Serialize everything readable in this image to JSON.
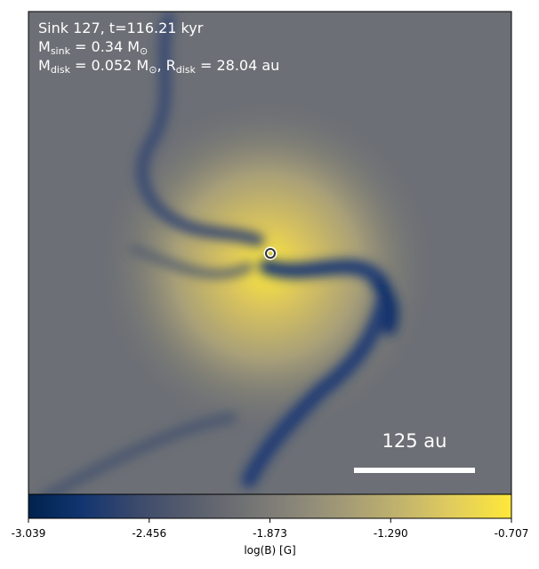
{
  "chart_data": {
    "type": "colormap-image",
    "annotation_lines": [
      [
        {
          "text": "Sink 127, t=116.21 kyr",
          "sub": false
        }
      ],
      [
        {
          "text": "M",
          "sub": false
        },
        {
          "text": "sink",
          "sub": true
        },
        {
          "text": " = 0.34 M",
          "sub": false
        },
        {
          "text": "⊙",
          "sub": true
        }
      ],
      [
        {
          "text": "M",
          "sub": false
        },
        {
          "text": "disk",
          "sub": true
        },
        {
          "text": " = 0.052 M",
          "sub": false
        },
        {
          "text": "⊙",
          "sub": true
        },
        {
          "text": ", R",
          "sub": false
        },
        {
          "text": "disk",
          "sub": true
        },
        {
          "text": " = 28.04 au",
          "sub": false
        }
      ]
    ],
    "scale_bar_label": "125 au",
    "colorbar": {
      "label": "log(B) [G]",
      "lim": [
        -3.039,
        -0.707
      ],
      "ticks": [
        -3.039,
        -2.456,
        -1.873,
        -1.29,
        -0.707
      ],
      "colormap": [
        "#00224e",
        "#123570",
        "#3b496c",
        "#575d6d",
        "#707173",
        "#8a8779",
        "#a69d75",
        "#c4b56c",
        "#e4cf5b",
        "#fee838"
      ]
    }
  }
}
